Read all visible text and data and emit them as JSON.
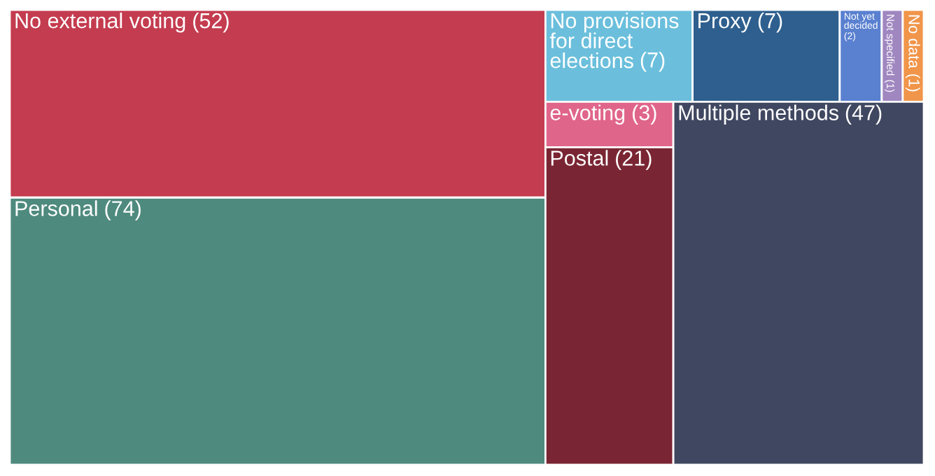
{
  "chart_data": {
    "type": "other",
    "categories": [
      "No external voting",
      "Personal",
      "No provisions for direct elections",
      "Proxy",
      "Not yet decided",
      "Not specified",
      "No data",
      "e-voting",
      "Postal",
      "Multiple methods"
    ],
    "values": [
      52,
      74,
      7,
      7,
      2,
      1,
      1,
      3,
      21,
      47
    ],
    "colors": [
      "#c43c4f",
      "#4f8a7e",
      "#6bbfdc",
      "#2e5f8e",
      "#5a80d0",
      "#a087c0",
      "#f0954a",
      "#e0658a",
      "#7a2533",
      "#404760"
    ],
    "data_labels": true,
    "value_labels": [
      "(52)",
      "(74)",
      "(7)",
      "(7)",
      "(2)",
      "(1)",
      "(1)",
      "(3)",
      "(21)",
      "(47)"
    ]
  }
}
